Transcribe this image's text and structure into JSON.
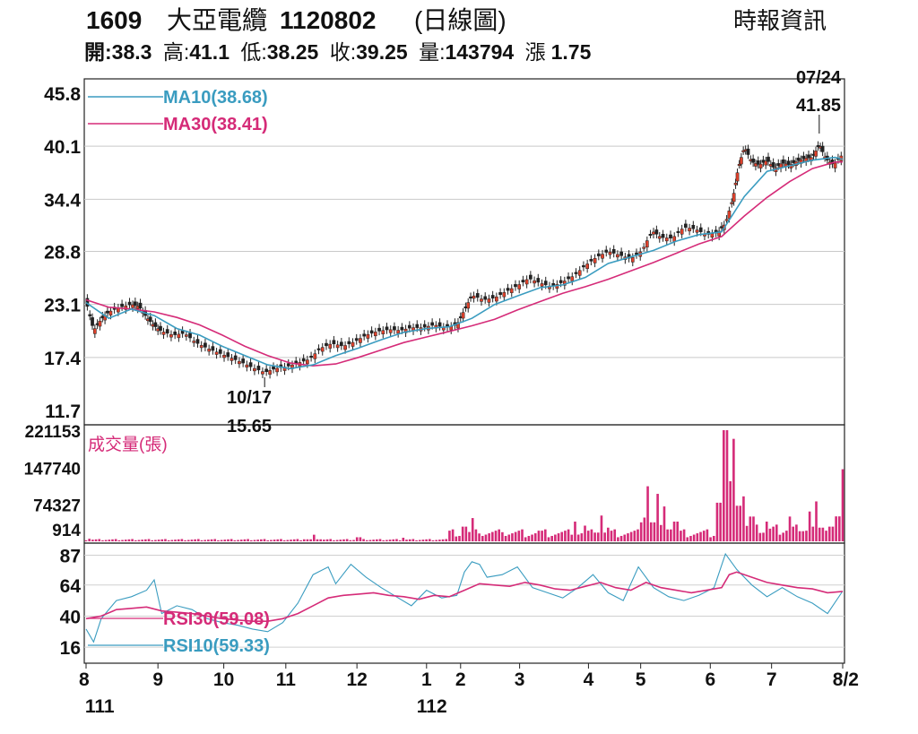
{
  "header": {
    "code": "1609",
    "name": "大亞電纜",
    "date": "1120802",
    "chart_kind": "(日線圖)",
    "source": "時報資訊",
    "quote": {
      "open_label": "開:",
      "open": "38.3",
      "high_label": "高:",
      "high": "41.1",
      "low_label": "低:",
      "low": "38.25",
      "close_label": "收:",
      "close": "39.25",
      "volume_label": "量:",
      "volume": "143794",
      "change_label": "漲",
      "change": "1.75"
    }
  },
  "chart_data": [
    {
      "type": "candlestick",
      "panel": "price",
      "ylim": [
        11.7,
        45.8
      ],
      "y_ticks": [
        "45.8",
        "40.1",
        "34.4",
        "28.8",
        "23.1",
        "17.4",
        "11.7"
      ],
      "legend": [
        {
          "name": "MA10(38.68)",
          "color": "#3a9cc0"
        },
        {
          "name": "MA30(38.41)",
          "color": "#d52b78"
        }
      ],
      "annotations": [
        {
          "date_label": "07/24",
          "value_label": "41.85",
          "value": 41.85,
          "t": 0.969
        },
        {
          "date_label": "10/17",
          "value_label": "15.65",
          "value": 15.65,
          "t": 0.236
        }
      ],
      "close_path": [
        [
          0.0,
          23.4
        ],
        [
          0.01,
          20.3
        ],
        [
          0.02,
          21.5
        ],
        [
          0.03,
          22.3
        ],
        [
          0.045,
          22.8
        ],
        [
          0.06,
          23.1
        ],
        [
          0.07,
          22.9
        ],
        [
          0.08,
          21.7
        ],
        [
          0.09,
          20.8
        ],
        [
          0.1,
          20.2
        ],
        [
          0.115,
          19.8
        ],
        [
          0.13,
          20.0
        ],
        [
          0.145,
          19.0
        ],
        [
          0.16,
          18.4
        ],
        [
          0.175,
          17.9
        ],
        [
          0.19,
          17.4
        ],
        [
          0.205,
          16.9
        ],
        [
          0.22,
          16.3
        ],
        [
          0.236,
          15.8
        ],
        [
          0.25,
          16.2
        ],
        [
          0.265,
          16.4
        ],
        [
          0.28,
          16.8
        ],
        [
          0.295,
          17.2
        ],
        [
          0.31,
          18.4
        ],
        [
          0.325,
          18.9
        ],
        [
          0.34,
          18.6
        ],
        [
          0.355,
          19.1
        ],
        [
          0.37,
          19.8
        ],
        [
          0.385,
          20.2
        ],
        [
          0.4,
          20.4
        ],
        [
          0.415,
          20.3
        ],
        [
          0.43,
          20.6
        ],
        [
          0.445,
          20.6
        ],
        [
          0.46,
          20.9
        ],
        [
          0.475,
          20.6
        ],
        [
          0.49,
          20.9
        ],
        [
          0.5,
          22.5
        ],
        [
          0.51,
          24.1
        ],
        [
          0.525,
          23.6
        ],
        [
          0.54,
          23.8
        ],
        [
          0.555,
          24.5
        ],
        [
          0.57,
          25.1
        ],
        [
          0.585,
          25.9
        ],
        [
          0.6,
          25.4
        ],
        [
          0.615,
          25.0
        ],
        [
          0.63,
          25.5
        ],
        [
          0.645,
          26.2
        ],
        [
          0.66,
          27.3
        ],
        [
          0.675,
          28.2
        ],
        [
          0.69,
          28.8
        ],
        [
          0.705,
          28.4
        ],
        [
          0.72,
          28.0
        ],
        [
          0.735,
          28.9
        ],
        [
          0.748,
          31.0
        ],
        [
          0.76,
          30.3
        ],
        [
          0.775,
          30.2
        ],
        [
          0.79,
          31.4
        ],
        [
          0.805,
          31.2
        ],
        [
          0.82,
          30.6
        ],
        [
          0.835,
          30.8
        ],
        [
          0.845,
          31.8
        ],
        [
          0.855,
          34.5
        ],
        [
          0.862,
          37.8
        ],
        [
          0.87,
          40.0
        ],
        [
          0.88,
          38.4
        ],
        [
          0.89,
          38.1
        ],
        [
          0.9,
          38.6
        ],
        [
          0.91,
          37.7
        ],
        [
          0.92,
          38.3
        ],
        [
          0.93,
          38.1
        ],
        [
          0.94,
          38.5
        ],
        [
          0.95,
          38.8
        ],
        [
          0.96,
          38.9
        ],
        [
          0.969,
          40.3
        ],
        [
          0.978,
          38.7
        ],
        [
          0.988,
          38.1
        ],
        [
          1.0,
          39.25
        ]
      ],
      "ma10_path": [
        [
          0.0,
          23.3
        ],
        [
          0.03,
          21.6
        ],
        [
          0.06,
          22.6
        ],
        [
          0.09,
          21.9
        ],
        [
          0.12,
          20.5
        ],
        [
          0.15,
          19.8
        ],
        [
          0.18,
          18.6
        ],
        [
          0.21,
          17.6
        ],
        [
          0.24,
          16.6
        ],
        [
          0.27,
          16.2
        ],
        [
          0.3,
          16.6
        ],
        [
          0.33,
          17.6
        ],
        [
          0.36,
          18.4
        ],
        [
          0.39,
          19.3
        ],
        [
          0.42,
          20.1
        ],
        [
          0.45,
          20.5
        ],
        [
          0.48,
          20.7
        ],
        [
          0.51,
          21.6
        ],
        [
          0.54,
          23.1
        ],
        [
          0.57,
          24.0
        ],
        [
          0.6,
          24.9
        ],
        [
          0.63,
          25.2
        ],
        [
          0.66,
          26.0
        ],
        [
          0.69,
          27.5
        ],
        [
          0.72,
          28.2
        ],
        [
          0.75,
          28.9
        ],
        [
          0.78,
          29.9
        ],
        [
          0.81,
          30.6
        ],
        [
          0.84,
          30.9
        ],
        [
          0.87,
          34.7
        ],
        [
          0.9,
          37.4
        ],
        [
          0.93,
          38.0
        ],
        [
          0.96,
          38.6
        ],
        [
          0.99,
          38.9
        ],
        [
          1.0,
          38.68
        ]
      ],
      "ma30_path": [
        [
          0.0,
          23.6
        ],
        [
          0.03,
          22.8
        ],
        [
          0.06,
          22.6
        ],
        [
          0.09,
          22.3
        ],
        [
          0.12,
          21.7
        ],
        [
          0.15,
          20.9
        ],
        [
          0.18,
          19.8
        ],
        [
          0.21,
          18.6
        ],
        [
          0.24,
          17.6
        ],
        [
          0.27,
          16.8
        ],
        [
          0.3,
          16.5
        ],
        [
          0.33,
          16.7
        ],
        [
          0.36,
          17.4
        ],
        [
          0.39,
          18.2
        ],
        [
          0.42,
          19.0
        ],
        [
          0.45,
          19.6
        ],
        [
          0.48,
          20.2
        ],
        [
          0.51,
          20.8
        ],
        [
          0.54,
          21.5
        ],
        [
          0.57,
          22.5
        ],
        [
          0.6,
          23.4
        ],
        [
          0.63,
          24.3
        ],
        [
          0.66,
          25.0
        ],
        [
          0.69,
          25.8
        ],
        [
          0.72,
          26.7
        ],
        [
          0.75,
          27.6
        ],
        [
          0.78,
          28.6
        ],
        [
          0.81,
          29.6
        ],
        [
          0.84,
          30.4
        ],
        [
          0.87,
          32.6
        ],
        [
          0.9,
          34.6
        ],
        [
          0.93,
          36.3
        ],
        [
          0.96,
          37.7
        ],
        [
          0.99,
          38.4
        ],
        [
          1.0,
          38.41
        ]
      ]
    },
    {
      "type": "bar",
      "panel": "volume",
      "title": "成交量(張)",
      "ylim": [
        914,
        221153
      ],
      "y_ticks": [
        "221153",
        "147740",
        "74327",
        "914"
      ],
      "bar_color": "#d52b78",
      "volume_spikes": [
        [
          0.005,
          6000
        ],
        [
          0.02,
          3000
        ],
        [
          0.3,
          14000
        ],
        [
          0.36,
          9000
        ],
        [
          0.42,
          8000
        ],
        [
          0.5,
          30000
        ],
        [
          0.51,
          47000
        ],
        [
          0.55,
          19000
        ],
        [
          0.6,
          22000
        ],
        [
          0.645,
          40000
        ],
        [
          0.66,
          32000
        ],
        [
          0.682,
          52000
        ],
        [
          0.69,
          28000
        ],
        [
          0.74,
          48000
        ],
        [
          0.743,
          110000
        ],
        [
          0.755,
          95000
        ],
        [
          0.765,
          70000
        ],
        [
          0.78,
          40000
        ],
        [
          0.84,
          20000
        ],
        [
          0.845,
          221153
        ],
        [
          0.85,
          120000
        ],
        [
          0.855,
          204000
        ],
        [
          0.87,
          90000
        ],
        [
          0.88,
          50000
        ],
        [
          0.9,
          40000
        ],
        [
          0.93,
          50000
        ],
        [
          0.955,
          60000
        ],
        [
          0.965,
          80000
        ],
        [
          0.985,
          30000
        ],
        [
          1.0,
          143794
        ]
      ]
    },
    {
      "type": "line",
      "panel": "rsi",
      "y_ticks": [
        "87",
        "64",
        "40",
        "16"
      ],
      "ylim": [
        5,
        95
      ],
      "legend": [
        {
          "name": "RSI30(59.08)",
          "color": "#d52b78"
        },
        {
          "name": "RSI10(59.33)",
          "color": "#3a9cc0"
        }
      ],
      "rsi30_path": [
        [
          0.0,
          38
        ],
        [
          0.02,
          40
        ],
        [
          0.04,
          45
        ],
        [
          0.06,
          46
        ],
        [
          0.08,
          47
        ],
        [
          0.1,
          44
        ],
        [
          0.12,
          43
        ],
        [
          0.14,
          42
        ],
        [
          0.16,
          40
        ],
        [
          0.18,
          38
        ],
        [
          0.2,
          37
        ],
        [
          0.22,
          36
        ],
        [
          0.24,
          36
        ],
        [
          0.26,
          38
        ],
        [
          0.28,
          42
        ],
        [
          0.3,
          48
        ],
        [
          0.32,
          54
        ],
        [
          0.34,
          56
        ],
        [
          0.36,
          57
        ],
        [
          0.38,
          58
        ],
        [
          0.4,
          56
        ],
        [
          0.42,
          55
        ],
        [
          0.44,
          53
        ],
        [
          0.46,
          56
        ],
        [
          0.48,
          55
        ],
        [
          0.5,
          60
        ],
        [
          0.52,
          65
        ],
        [
          0.54,
          64
        ],
        [
          0.56,
          63
        ],
        [
          0.58,
          66
        ],
        [
          0.6,
          64
        ],
        [
          0.62,
          61
        ],
        [
          0.64,
          60
        ],
        [
          0.66,
          63
        ],
        [
          0.68,
          66
        ],
        [
          0.7,
          62
        ],
        [
          0.72,
          60
        ],
        [
          0.74,
          66
        ],
        [
          0.76,
          62
        ],
        [
          0.78,
          60
        ],
        [
          0.8,
          58
        ],
        [
          0.82,
          60
        ],
        [
          0.84,
          62
        ],
        [
          0.85,
          72
        ],
        [
          0.86,
          74
        ],
        [
          0.88,
          70
        ],
        [
          0.9,
          66
        ],
        [
          0.92,
          64
        ],
        [
          0.94,
          62
        ],
        [
          0.96,
          61
        ],
        [
          0.98,
          58
        ],
        [
          1.0,
          59.08
        ]
      ],
      "rsi10_path": [
        [
          0.0,
          30
        ],
        [
          0.01,
          20
        ],
        [
          0.02,
          38
        ],
        [
          0.04,
          52
        ],
        [
          0.06,
          55
        ],
        [
          0.08,
          60
        ],
        [
          0.09,
          68
        ],
        [
          0.1,
          42
        ],
        [
          0.12,
          48
        ],
        [
          0.14,
          45
        ],
        [
          0.16,
          38
        ],
        [
          0.18,
          35
        ],
        [
          0.2,
          33
        ],
        [
          0.22,
          30
        ],
        [
          0.24,
          28
        ],
        [
          0.26,
          35
        ],
        [
          0.28,
          50
        ],
        [
          0.3,
          72
        ],
        [
          0.32,
          78
        ],
        [
          0.33,
          65
        ],
        [
          0.35,
          80
        ],
        [
          0.37,
          70
        ],
        [
          0.39,
          62
        ],
        [
          0.41,
          55
        ],
        [
          0.43,
          48
        ],
        [
          0.45,
          60
        ],
        [
          0.47,
          54
        ],
        [
          0.49,
          56
        ],
        [
          0.5,
          74
        ],
        [
          0.51,
          82
        ],
        [
          0.52,
          80
        ],
        [
          0.53,
          70
        ],
        [
          0.55,
          72
        ],
        [
          0.57,
          78
        ],
        [
          0.59,
          62
        ],
        [
          0.61,
          58
        ],
        [
          0.63,
          54
        ],
        [
          0.65,
          62
        ],
        [
          0.67,
          72
        ],
        [
          0.69,
          58
        ],
        [
          0.71,
          52
        ],
        [
          0.73,
          78
        ],
        [
          0.75,
          62
        ],
        [
          0.77,
          55
        ],
        [
          0.79,
          52
        ],
        [
          0.81,
          56
        ],
        [
          0.83,
          62
        ],
        [
          0.845,
          88
        ],
        [
          0.86,
          76
        ],
        [
          0.88,
          64
        ],
        [
          0.9,
          55
        ],
        [
          0.92,
          62
        ],
        [
          0.94,
          55
        ],
        [
          0.96,
          50
        ],
        [
          0.98,
          42
        ],
        [
          1.0,
          59.33
        ]
      ]
    }
  ],
  "x_axis": {
    "months": [
      "8",
      "9",
      "10",
      "11",
      "12",
      "1",
      "2",
      "3",
      "4",
      "5",
      "6",
      "7",
      "8/2"
    ],
    "month_positions": [
      0.0,
      0.095,
      0.182,
      0.264,
      0.358,
      0.45,
      0.495,
      0.573,
      0.664,
      0.733,
      0.825,
      0.906,
      1.0
    ],
    "year_labels": [
      {
        "label": "111",
        "t": 0.018
      },
      {
        "label": "112",
        "t": 0.457
      }
    ]
  }
}
